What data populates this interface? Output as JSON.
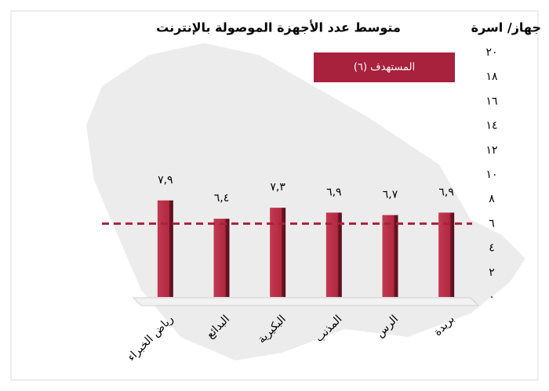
{
  "chart_data": {
    "type": "bar",
    "title": "متوسط عدد الأجهزة الموصولة بالإنترنت",
    "y_axis_label": "جهاز/ اسرة",
    "categories": [
      "رياض الخبراء",
      "البدائع",
      "البكيرية",
      "المذنب",
      "الرس",
      "بريدة"
    ],
    "values": [
      7.9,
      6.4,
      7.3,
      6.9,
      6.7,
      6.9
    ],
    "value_labels": [
      "٧,٩",
      "٦,٤",
      "٧,٣",
      "٦,٩",
      "٦,٧",
      "٦,٩"
    ],
    "color": "#b0273f",
    "ylim": [
      0,
      20
    ],
    "yticks": [
      {
        "value": 0,
        "label": "٠"
      },
      {
        "value": 2,
        "label": "٢"
      },
      {
        "value": 4,
        "label": "٤"
      },
      {
        "value": 6,
        "label": "٦"
      },
      {
        "value": 8,
        "label": "٨"
      },
      {
        "value": 10,
        "label": "١٠"
      },
      {
        "value": 12,
        "label": "١٢"
      },
      {
        "value": 14,
        "label": "١٤"
      },
      {
        "value": 16,
        "label": "١٦"
      },
      {
        "value": 18,
        "label": "١٨"
      },
      {
        "value": 20,
        "label": "٢٠"
      }
    ],
    "target": {
      "value": 6,
      "label": "المستهدف (٦)",
      "color": "#a8213d"
    }
  }
}
